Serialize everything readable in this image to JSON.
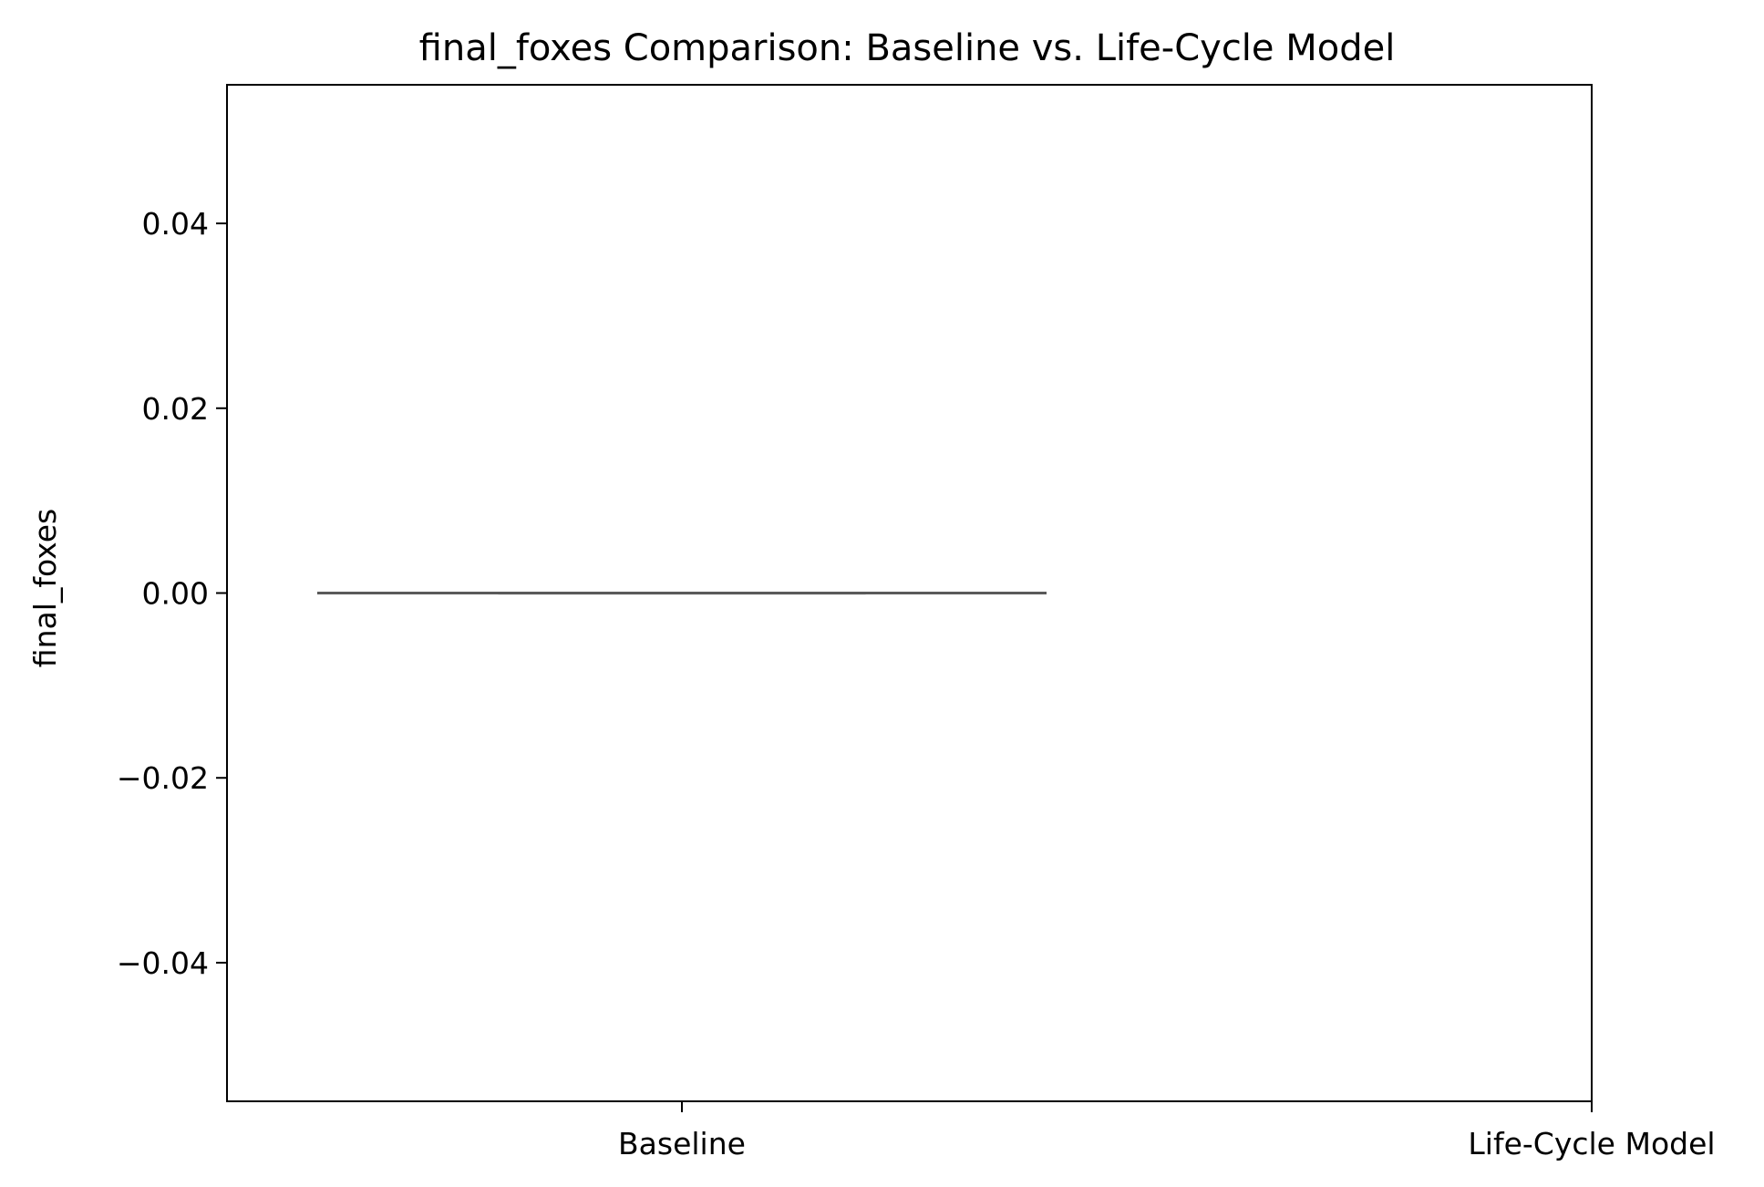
{
  "chart_data": {
    "type": "box",
    "title": "final_foxes Comparison: Baseline vs. Life-Cycle Model",
    "xlabel": "",
    "ylabel": "final_foxes",
    "categories": [
      "Baseline",
      "Life-Cycle Model"
    ],
    "ylim": [
      -0.055,
      0.055
    ],
    "yticks": [
      -0.04,
      -0.02,
      0.0,
      0.02,
      0.04
    ],
    "ytick_labels": [
      "−0.04",
      "−0.02",
      "0.00",
      "0.02",
      "0.04"
    ],
    "grid": false,
    "legend": "none",
    "series": [
      {
        "category": "Baseline",
        "min": 0.0,
        "q1": 0.0,
        "median": 0.0,
        "q3": 0.0,
        "max": 0.0
      }
    ],
    "colors": {
      "box_line": "#5a5a5a",
      "axes": "#000000"
    }
  }
}
